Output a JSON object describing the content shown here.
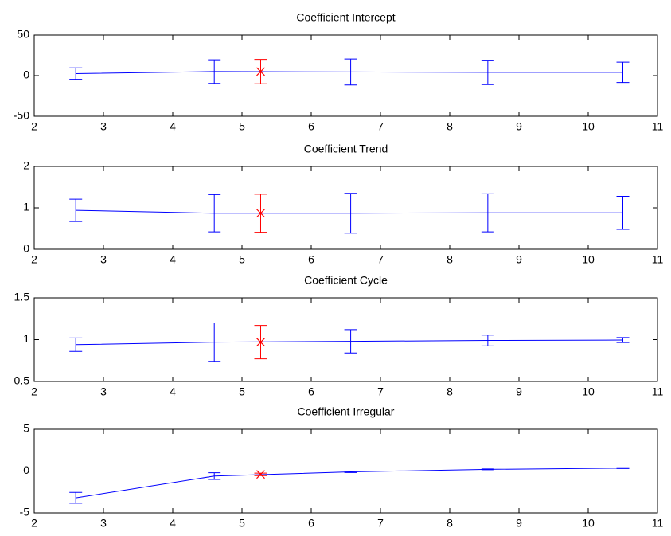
{
  "chart_data": [
    {
      "type": "errorbar",
      "title": "Coefficient Intercept",
      "xlim": [
        2,
        11
      ],
      "xticks": [
        2,
        3,
        4,
        5,
        6,
        7,
        8,
        9,
        10,
        11
      ],
      "ylim": [
        -50,
        50
      ],
      "yticks": [
        -50,
        0,
        50
      ],
      "series": [
        {
          "color": "#0000ff",
          "marker": "none",
          "x": [
            2.6,
            4.6,
            6.57,
            8.55,
            10.5
          ],
          "values": [
            2.5,
            5,
            4.5,
            4,
            4
          ],
          "errors": [
            7,
            14.5,
            16,
            15,
            12.5
          ]
        },
        {
          "color": "#ff0000",
          "marker": "x",
          "x": [
            5.27
          ],
          "values": [
            5
          ],
          "errors": [
            15
          ]
        }
      ]
    },
    {
      "type": "errorbar",
      "title": "Coefficient Trend",
      "xlim": [
        2,
        11
      ],
      "xticks": [
        2,
        3,
        4,
        5,
        6,
        7,
        8,
        9,
        10,
        11
      ],
      "ylim": [
        0,
        2
      ],
      "yticks": [
        0,
        1,
        2
      ],
      "series": [
        {
          "color": "#0000ff",
          "marker": "none",
          "x": [
            2.6,
            4.6,
            6.57,
            8.55,
            10.5
          ],
          "values": [
            0.94,
            0.87,
            0.87,
            0.88,
            0.88
          ],
          "errors": [
            0.27,
            0.45,
            0.48,
            0.46,
            0.4
          ]
        },
        {
          "color": "#ff0000",
          "marker": "x",
          "x": [
            5.27
          ],
          "values": [
            0.87
          ],
          "errors": [
            0.46
          ]
        }
      ]
    },
    {
      "type": "errorbar",
      "title": "Coefficient Cycle",
      "xlim": [
        2,
        11
      ],
      "xticks": [
        2,
        3,
        4,
        5,
        6,
        7,
        8,
        9,
        10,
        11
      ],
      "ylim": [
        0.5,
        1.5
      ],
      "yticks": [
        0.5,
        1,
        1.5
      ],
      "series": [
        {
          "color": "#0000ff",
          "marker": "none",
          "x": [
            2.6,
            4.6,
            6.57,
            8.55,
            10.5
          ],
          "values": [
            0.94,
            0.97,
            0.98,
            0.99,
            0.995
          ],
          "errors": [
            0.08,
            0.23,
            0.14,
            0.065,
            0.03
          ]
        },
        {
          "color": "#ff0000",
          "marker": "x",
          "x": [
            5.27
          ],
          "values": [
            0.97
          ],
          "errors": [
            0.2
          ]
        }
      ]
    },
    {
      "type": "errorbar",
      "title": "Coefficient Irregular",
      "xlim": [
        2,
        11
      ],
      "xticks": [
        2,
        3,
        4,
        5,
        6,
        7,
        8,
        9,
        10,
        11
      ],
      "ylim": [
        -5,
        5
      ],
      "yticks": [
        -5,
        0,
        5
      ],
      "series": [
        {
          "color": "#0000ff",
          "marker": "none",
          "x": [
            2.6,
            4.6,
            6.57,
            8.55,
            10.5
          ],
          "values": [
            -3.2,
            -0.6,
            -0.1,
            0.2,
            0.35
          ],
          "errors": [
            0.65,
            0.4,
            0.08,
            0.05,
            0.05
          ]
        },
        {
          "color": "#ff0000",
          "marker": "x",
          "x": [
            5.27
          ],
          "values": [
            -0.4
          ],
          "errors": [
            0.15
          ]
        }
      ]
    }
  ]
}
